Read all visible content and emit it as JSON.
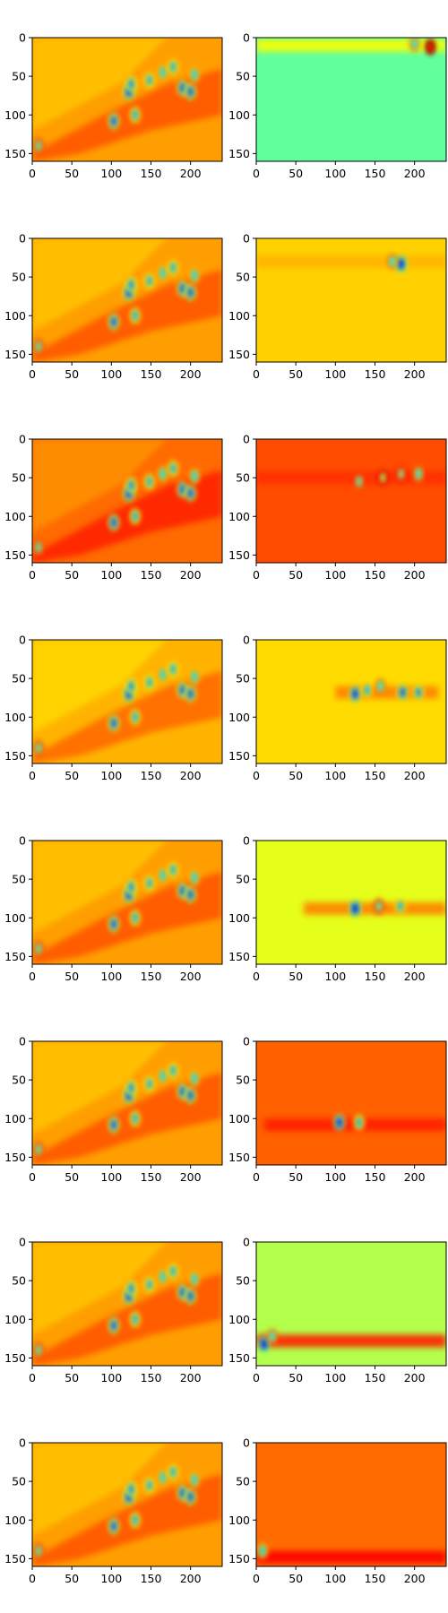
{
  "chart_data": {
    "type": "heatmap",
    "layout": "grid",
    "rows": 8,
    "cols": 2,
    "colormap": "jet",
    "colormap_stops": [
      "#00007f",
      "#0000ff",
      "#007fff",
      "#00ffff",
      "#7fff7f",
      "#ffff00",
      "#ff7f00",
      "#ff0000",
      "#7f0000"
    ],
    "image_width": 240,
    "image_height": 160,
    "xlim": [
      0,
      240
    ],
    "ylim": [
      160,
      0
    ],
    "x_ticks": [
      0,
      50,
      100,
      150,
      200
    ],
    "y_ticks": [
      0,
      50,
      100,
      150
    ],
    "x_tick_labels": [
      "0",
      "50",
      "100",
      "150",
      "200"
    ],
    "y_tick_labels": [
      "0",
      "50",
      "100",
      "150"
    ],
    "title": "",
    "xlabel": "",
    "ylabel": "",
    "grid": false,
    "legend": false,
    "hotspots_left": [
      {
        "x": 122,
        "y": 70,
        "v": 0.15
      },
      {
        "x": 125,
        "y": 60,
        "v": 0.25
      },
      {
        "x": 130,
        "y": 100,
        "v": 0.3
      },
      {
        "x": 103,
        "y": 108,
        "v": 0.2
      },
      {
        "x": 148,
        "y": 55,
        "v": 0.3
      },
      {
        "x": 165,
        "y": 45,
        "v": 0.35
      },
      {
        "x": 178,
        "y": 38,
        "v": 0.3
      },
      {
        "x": 190,
        "y": 65,
        "v": 0.2
      },
      {
        "x": 200,
        "y": 70,
        "v": 0.2
      },
      {
        "x": 205,
        "y": 48,
        "v": 0.35
      },
      {
        "x": 8,
        "y": 140,
        "v": 0.45
      }
    ],
    "panels": [
      {
        "row": 1,
        "left": {
          "base": 0.72,
          "pattern": "common"
        },
        "right": {
          "base": 0.47,
          "band_y": 10,
          "band_x": [
            0,
            240
          ],
          "band_value": 0.62,
          "hotspots": [
            {
              "x": 220,
              "y": 12,
              "v": 0.85
            },
            {
              "x": 200,
              "y": 8,
              "v": 0.4
            }
          ]
        }
      },
      {
        "row": 2,
        "left": {
          "base": 0.72,
          "pattern": "common"
        },
        "right": {
          "base": 0.67,
          "band_y": 30,
          "band_x": [
            0,
            240
          ],
          "band_value": 0.7,
          "hotspots": [
            {
              "x": 183,
              "y": 33,
              "v": 0.1
            },
            {
              "x": 172,
              "y": 30,
              "v": 0.4
            }
          ]
        }
      },
      {
        "row": 3,
        "left": {
          "base": 0.77,
          "pattern": "common"
        },
        "right": {
          "base": 0.8,
          "band_y": 50,
          "band_x": [
            0,
            240
          ],
          "band_value": 0.83,
          "hotspots": [
            {
              "x": 130,
              "y": 55,
              "v": 0.45
            },
            {
              "x": 160,
              "y": 50,
              "v": 0.55
            },
            {
              "x": 183,
              "y": 45,
              "v": 0.5
            },
            {
              "x": 205,
              "y": 45,
              "v": 0.4
            }
          ]
        }
      },
      {
        "row": 4,
        "left": {
          "base": 0.7,
          "pattern": "common"
        },
        "right": {
          "base": 0.66,
          "band_y": 68,
          "band_x": [
            100,
            230
          ],
          "band_value": 0.75,
          "hotspots": [
            {
              "x": 125,
              "y": 70,
              "v": 0.15
            },
            {
              "x": 140,
              "y": 65,
              "v": 0.3
            },
            {
              "x": 157,
              "y": 60,
              "v": 0.4
            },
            {
              "x": 185,
              "y": 68,
              "v": 0.2
            },
            {
              "x": 205,
              "y": 68,
              "v": 0.25
            }
          ]
        }
      },
      {
        "row": 5,
        "left": {
          "base": 0.72,
          "pattern": "common"
        },
        "right": {
          "base": 0.6,
          "band_y": 88,
          "band_x": [
            60,
            240
          ],
          "band_value": 0.75,
          "hotspots": [
            {
              "x": 125,
              "y": 88,
              "v": 0.1
            },
            {
              "x": 155,
              "y": 85,
              "v": 0.45
            },
            {
              "x": 182,
              "y": 85,
              "v": 0.3
            }
          ]
        }
      },
      {
        "row": 6,
        "left": {
          "base": 0.72,
          "pattern": "common"
        },
        "right": {
          "base": 0.78,
          "band_y": 108,
          "band_x": [
            10,
            240
          ],
          "band_value": 0.85,
          "hotspots": [
            {
              "x": 105,
              "y": 105,
              "v": 0.15
            },
            {
              "x": 130,
              "y": 105,
              "v": 0.3
            }
          ]
        }
      },
      {
        "row": 7,
        "left": {
          "base": 0.72,
          "pattern": "common"
        },
        "right": {
          "base": 0.55,
          "band_y": 128,
          "band_x": [
            0,
            240
          ],
          "band_value": 0.85,
          "hotspots": [
            {
              "x": 10,
              "y": 132,
              "v": 0.1
            },
            {
              "x": 20,
              "y": 122,
              "v": 0.4
            }
          ]
        }
      },
      {
        "row": 8,
        "left": {
          "base": 0.72,
          "pattern": "common"
        },
        "right": {
          "base": 0.77,
          "band_y": 148,
          "band_x": [
            0,
            240
          ],
          "band_value": 0.88,
          "hotspots": [
            {
              "x": 8,
              "y": 140,
              "v": 0.35
            }
          ]
        }
      }
    ]
  }
}
